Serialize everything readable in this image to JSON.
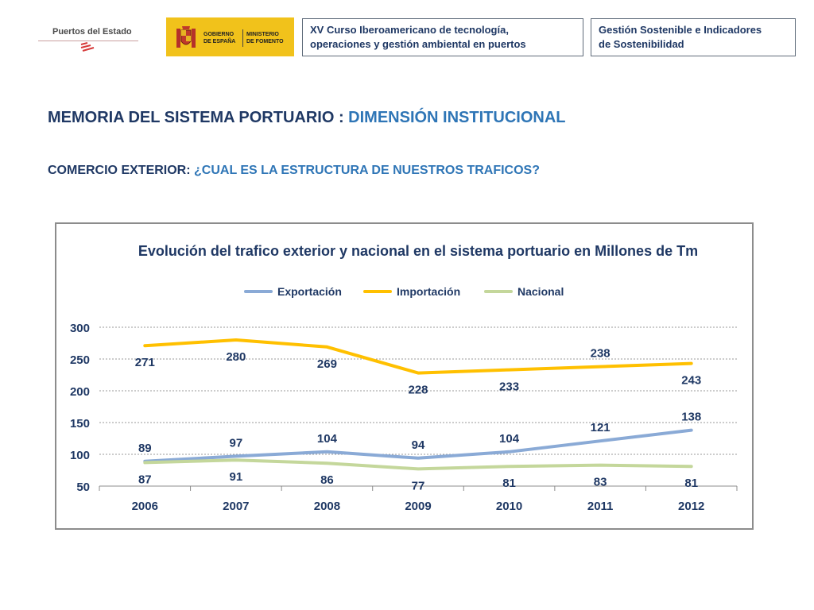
{
  "header": {
    "logo_puertos": "Puertos del Estado",
    "logo_gobierno_line1": "GOBIERNO",
    "logo_gobierno_line2": "DE ESPAÑA",
    "logo_ministerio_line1": "MINISTERIO",
    "logo_ministerio_line2": "DE FOMENTO",
    "box_curso_line1": "XV Curso Iberoamericano de tecnología,",
    "box_curso_line2": "operaciones y gestión ambiental en puertos",
    "box_gestion_line1": "Gestión Sostenible e Indicadores",
    "box_gestion_line2": "de Sostenibilidad"
  },
  "heading": {
    "main": "MEMORIA DEL SISTEMA PORTUARIO : ",
    "accent": "DIMENSIÓN INSTITUCIONAL"
  },
  "subheading": {
    "main": "COMERCIO EXTERIOR: ",
    "accent": "¿CUAL ES LA ESTRUCTURA DE NUESTROS TRAFICOS?"
  },
  "chart_data": {
    "type": "line",
    "title": "Evolución del trafico exterior y nacional en el sistema portuario en Millones de Tm",
    "categories": [
      "2006",
      "2007",
      "2008",
      "2009",
      "2010",
      "2011",
      "2012"
    ],
    "series": [
      {
        "name": "Exportación",
        "values": [
          89,
          97,
          104,
          94,
          104,
          121,
          138
        ],
        "color": "#8aaad6"
      },
      {
        "name": "Importación",
        "values": [
          271,
          280,
          269,
          228,
          233,
          238,
          243
        ],
        "color": "#ffc000"
      },
      {
        "name": "Nacional",
        "values": [
          87,
          91,
          86,
          77,
          81,
          83,
          81
        ],
        "color": "#c4d79b"
      }
    ],
    "ylim": [
      50,
      300
    ],
    "yticks": [
      50,
      100,
      150,
      200,
      250,
      300
    ],
    "xlabel": "",
    "ylabel": "",
    "grid": true,
    "legend_position": "top-center",
    "label_color": "#1f3864"
  }
}
